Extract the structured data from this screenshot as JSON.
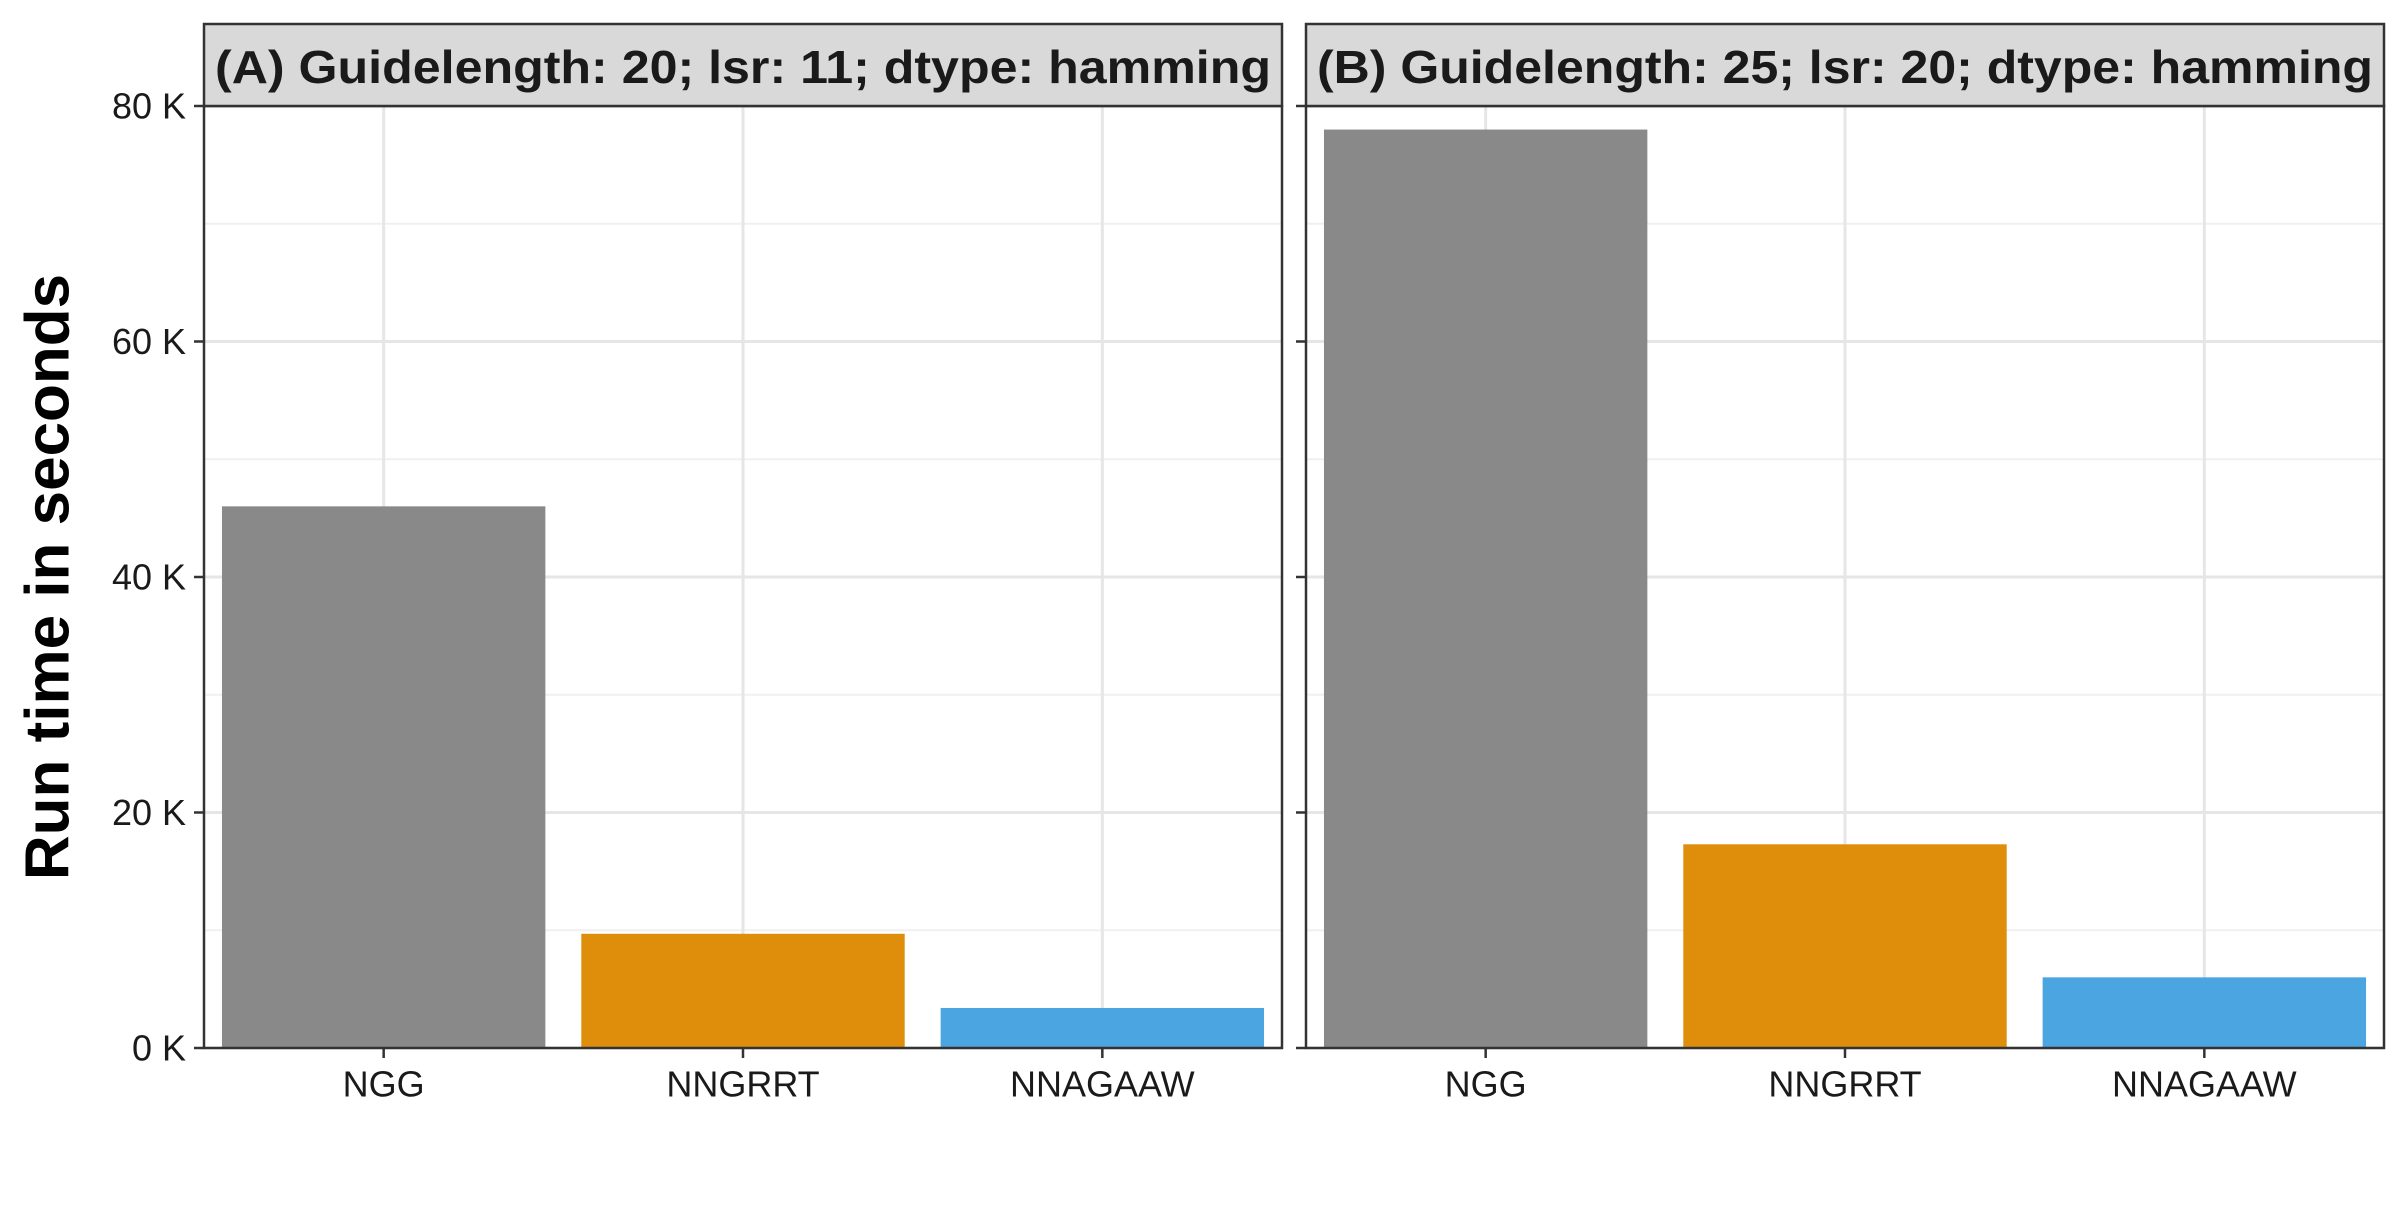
{
  "chart_data": [
    {
      "type": "bar",
      "title": "(A) Guidelength: 20; lsr: 11; dtype: hamming",
      "xlabel": "",
      "ylabel": "Run time in seconds",
      "categories": [
        "NGG",
        "NNGRRT",
        "NNAGAAW"
      ],
      "values": [
        46000,
        9700,
        3400
      ],
      "colors": [
        "#898989",
        "#DF8E0C",
        "#4AA5E1"
      ],
      "ylim": [
        0,
        80000
      ],
      "yticks": [
        0,
        20000,
        40000,
        60000,
        80000
      ],
      "ytick_labels": [
        "0 K",
        "20 K",
        "40 K",
        "60 K",
        "80 K"
      ],
      "grid": true,
      "legend": "none"
    },
    {
      "type": "bar",
      "title": "(B) Guidelength: 25; lsr: 20; dtype: hamming",
      "xlabel": "",
      "ylabel": "Run time in seconds",
      "categories": [
        "NGG",
        "NNGRRT",
        "NNAGAAW"
      ],
      "values": [
        78000,
        17300,
        6000
      ],
      "colors": [
        "#898989",
        "#DF8E0C",
        "#4AA5E1"
      ],
      "ylim": [
        0,
        80000
      ],
      "yticks": [
        0,
        20000,
        40000,
        60000,
        80000
      ],
      "ytick_labels": [
        "0 K",
        "20 K",
        "40 K",
        "60 K",
        "80 K"
      ],
      "grid": true,
      "legend": "none"
    }
  ],
  "style": {
    "panel_border": "#333333",
    "strip_fill": "#D9D9D9",
    "grid_major": "#E6E6E6",
    "grid_minor": "#F0F0F0",
    "text": "#1a1a1a"
  }
}
